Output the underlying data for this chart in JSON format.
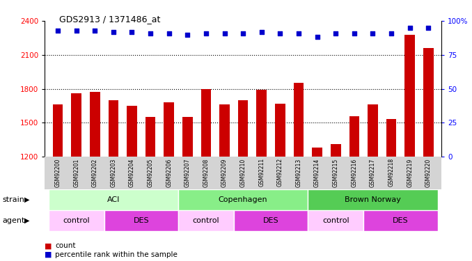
{
  "title": "GDS2913 / 1371486_at",
  "samples": [
    "GSM92200",
    "GSM92201",
    "GSM92202",
    "GSM92203",
    "GSM92204",
    "GSM92205",
    "GSM92206",
    "GSM92207",
    "GSM92208",
    "GSM92209",
    "GSM92210",
    "GSM92211",
    "GSM92212",
    "GSM92213",
    "GSM92214",
    "GSM92215",
    "GSM92216",
    "GSM92217",
    "GSM92218",
    "GSM92219",
    "GSM92220"
  ],
  "counts": [
    1660,
    1760,
    1775,
    1700,
    1650,
    1550,
    1680,
    1550,
    1800,
    1660,
    1700,
    1790,
    1670,
    1850,
    1280,
    1310,
    1560,
    1660,
    1530,
    2280,
    2160
  ],
  "percentiles": [
    93,
    93,
    93,
    92,
    92,
    91,
    91,
    90,
    91,
    91,
    91,
    92,
    91,
    91,
    88,
    91,
    91,
    91,
    91,
    95,
    95
  ],
  "bar_color": "#cc0000",
  "dot_color": "#0000cc",
  "ylim_left": [
    1200,
    2400
  ],
  "ylim_right": [
    0,
    100
  ],
  "yticks_left": [
    1200,
    1500,
    1800,
    2100,
    2400
  ],
  "yticks_right": [
    0,
    25,
    50,
    75,
    100
  ],
  "grid_lines": [
    1500,
    1800,
    2100
  ],
  "strain_groups": [
    {
      "label": "ACI",
      "start": 0,
      "end": 6,
      "color": "#ccffcc"
    },
    {
      "label": "Copenhagen",
      "start": 7,
      "end": 13,
      "color": "#88ee88"
    },
    {
      "label": "Brown Norway",
      "start": 14,
      "end": 20,
      "color": "#55cc55"
    }
  ],
  "agent_groups": [
    {
      "label": "control",
      "start": 0,
      "end": 2,
      "color": "#ffccff"
    },
    {
      "label": "DES",
      "start": 3,
      "end": 6,
      "color": "#dd44dd"
    },
    {
      "label": "control",
      "start": 7,
      "end": 9,
      "color": "#ffccff"
    },
    {
      "label": "DES",
      "start": 10,
      "end": 13,
      "color": "#dd44dd"
    },
    {
      "label": "control",
      "start": 14,
      "end": 16,
      "color": "#ffccff"
    },
    {
      "label": "DES",
      "start": 17,
      "end": 20,
      "color": "#dd44dd"
    }
  ],
  "legend_count_color": "#cc0000",
  "legend_dot_color": "#0000cc"
}
